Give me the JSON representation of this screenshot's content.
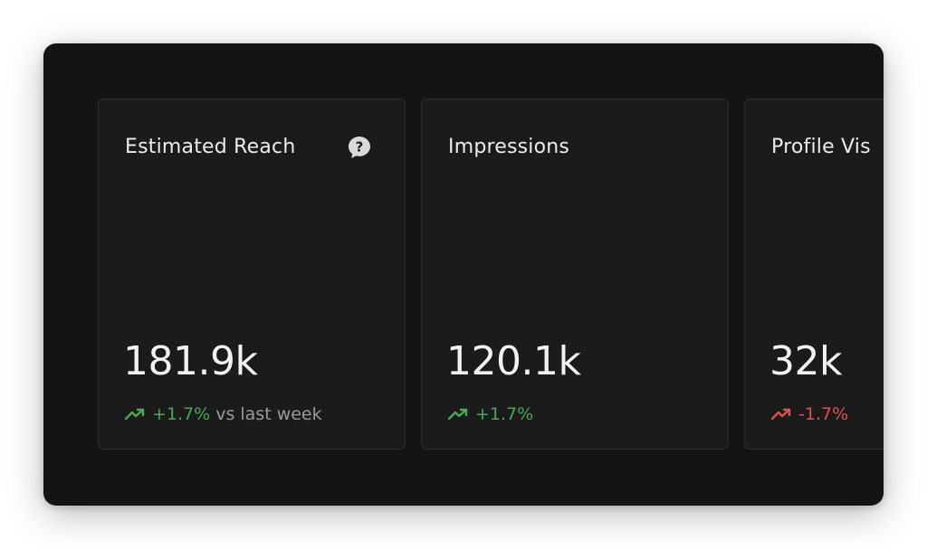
{
  "colors": {
    "panel_bg": "#141414",
    "card_bg": "#1b1b1b",
    "positive": "#4aa857",
    "negative": "#e0524d"
  },
  "cards": [
    {
      "title": "Estimated Reach",
      "icon": "help-icon",
      "value": "181.9k",
      "trend": {
        "direction": "up",
        "change": "+1.7%",
        "suffix": "vs last week"
      }
    },
    {
      "title": "Impressions",
      "value": "120.1k",
      "trend": {
        "direction": "up",
        "change": "+1.7%"
      }
    },
    {
      "title": "Profile Vis",
      "value": "32k",
      "trend": {
        "direction": "down",
        "change": "-1.7%"
      }
    }
  ]
}
